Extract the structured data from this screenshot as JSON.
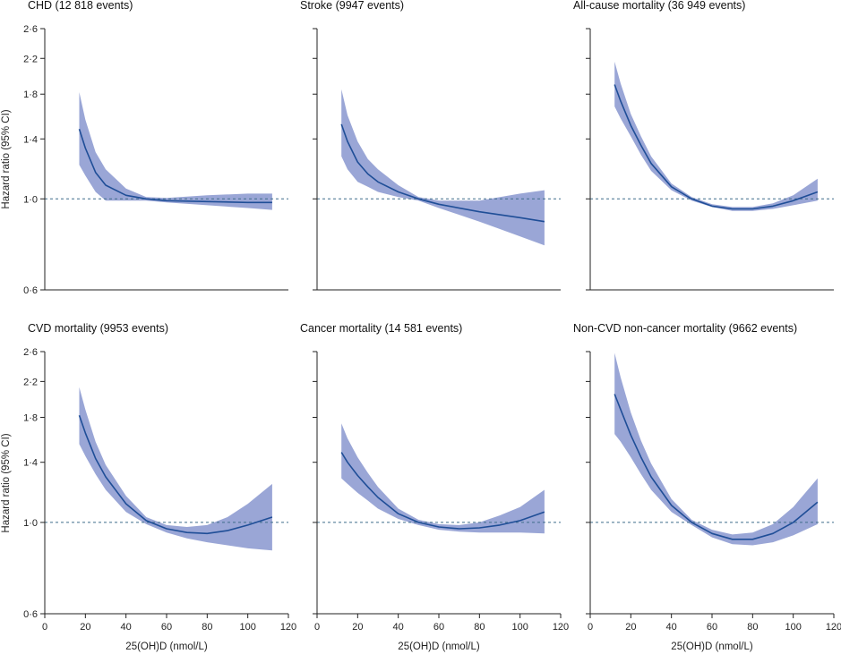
{
  "figure": {
    "y_axis_label": "Hazard ratio (95% CI)",
    "x_axis_label": "25(OH)D (nmol/L)"
  },
  "chart_data": [
    {
      "type": "line",
      "title": "CHD (12 818 events)",
      "ylabel": "Hazard ratio (95% CI)",
      "xlabel": "",
      "xlim": [
        0,
        120
      ],
      "ylim": [
        0.6,
        2.6
      ],
      "y_scale": "log",
      "yticks": [
        "0·6",
        "1·0",
        "1·4",
        "1·8",
        "2·2",
        "2·6"
      ],
      "ytick_values": [
        0.6,
        1.0,
        1.4,
        1.8,
        2.2,
        2.6
      ],
      "xticks": [],
      "reference_line": 1.0,
      "x": [
        17,
        20,
        25,
        30,
        40,
        50,
        60,
        80,
        100,
        112
      ],
      "hr": [
        1.48,
        1.33,
        1.16,
        1.08,
        1.02,
        1.0,
        0.99,
        0.985,
        0.98,
        0.98
      ],
      "ci_low": [
        1.21,
        1.14,
        1.04,
        0.99,
        0.99,
        0.99,
        0.98,
        0.965,
        0.95,
        0.94
      ],
      "ci_high": [
        1.82,
        1.56,
        1.3,
        1.18,
        1.06,
        1.01,
        1.005,
        1.02,
        1.03,
        1.03
      ]
    },
    {
      "type": "line",
      "title": "Stroke (9947 events)",
      "ylabel": "",
      "xlabel": "",
      "xlim": [
        0,
        120
      ],
      "ylim": [
        0.6,
        2.6
      ],
      "y_scale": "log",
      "yticks": [],
      "ytick_values": [
        0.6,
        1.0,
        1.4,
        1.8,
        2.2,
        2.6
      ],
      "xticks": [],
      "reference_line": 1.0,
      "x": [
        12,
        15,
        20,
        25,
        30,
        40,
        50,
        60,
        80,
        100,
        112
      ],
      "hr": [
        1.52,
        1.38,
        1.23,
        1.15,
        1.1,
        1.04,
        1.0,
        0.97,
        0.93,
        0.9,
        0.88
      ],
      "ci_low": [
        1.27,
        1.18,
        1.1,
        1.07,
        1.04,
        1.01,
        0.99,
        0.95,
        0.88,
        0.81,
        0.77
      ],
      "ci_high": [
        1.85,
        1.6,
        1.38,
        1.25,
        1.18,
        1.08,
        1.01,
        0.99,
        0.99,
        1.03,
        1.05
      ]
    },
    {
      "type": "line",
      "title": "All-cause mortality (36 949 events)",
      "ylabel": "",
      "xlabel": "",
      "xlim": [
        0,
        120
      ],
      "ylim": [
        0.6,
        2.6
      ],
      "y_scale": "log",
      "yticks": [],
      "ytick_values": [
        0.6,
        1.0,
        1.4,
        1.8,
        2.2,
        2.6
      ],
      "xticks": [],
      "reference_line": 1.0,
      "x": [
        12,
        15,
        20,
        25,
        30,
        40,
        50,
        60,
        70,
        80,
        90,
        100,
        112
      ],
      "hr": [
        1.9,
        1.73,
        1.51,
        1.35,
        1.22,
        1.07,
        1.0,
        0.96,
        0.945,
        0.945,
        0.96,
        0.99,
        1.04
      ],
      "ci_low": [
        1.68,
        1.57,
        1.42,
        1.28,
        1.17,
        1.05,
        0.99,
        0.955,
        0.935,
        0.935,
        0.945,
        0.965,
        0.99
      ],
      "ci_high": [
        2.16,
        1.91,
        1.61,
        1.42,
        1.27,
        1.09,
        1.01,
        0.97,
        0.955,
        0.955,
        0.975,
        1.02,
        1.12
      ]
    },
    {
      "type": "line",
      "title": "CVD mortality (9953 events)",
      "ylabel": "Hazard ratio (95% CI)",
      "xlabel": "25(OH)D (nmol/L)",
      "xlim": [
        0,
        120
      ],
      "ylim": [
        0.6,
        2.6
      ],
      "y_scale": "log",
      "yticks": [
        "0·6",
        "1·0",
        "1·4",
        "1·8",
        "2·2",
        "2·6"
      ],
      "ytick_values": [
        0.6,
        1.0,
        1.4,
        1.8,
        2.2,
        2.6
      ],
      "xticks": [
        0,
        20,
        40,
        60,
        80,
        100,
        120
      ],
      "reference_line": 1.0,
      "x": [
        17,
        20,
        25,
        30,
        40,
        50,
        60,
        70,
        80,
        90,
        100,
        112
      ],
      "hr": [
        1.82,
        1.65,
        1.43,
        1.29,
        1.11,
        1.01,
        0.965,
        0.945,
        0.94,
        0.955,
        0.985,
        1.03
      ],
      "ci_low": [
        1.55,
        1.45,
        1.31,
        1.2,
        1.06,
        0.99,
        0.945,
        0.915,
        0.895,
        0.88,
        0.865,
        0.855
      ],
      "ci_high": [
        2.13,
        1.88,
        1.57,
        1.38,
        1.16,
        1.03,
        0.985,
        0.975,
        0.985,
        1.03,
        1.11,
        1.24
      ]
    },
    {
      "type": "line",
      "title": "Cancer mortality (14 581 events)",
      "ylabel": "",
      "xlabel": "25(OH)D (nmol/L)",
      "xlim": [
        0,
        120
      ],
      "ylim": [
        0.6,
        2.6
      ],
      "y_scale": "log",
      "yticks": [],
      "ytick_values": [
        0.6,
        1.0,
        1.4,
        1.8,
        2.2,
        2.6
      ],
      "xticks": [
        0,
        20,
        40,
        60,
        80,
        100,
        120
      ],
      "reference_line": 1.0,
      "x": [
        12,
        15,
        20,
        25,
        30,
        40,
        50,
        60,
        70,
        80,
        90,
        100,
        112
      ],
      "hr": [
        1.48,
        1.4,
        1.3,
        1.22,
        1.15,
        1.05,
        1.0,
        0.975,
        0.965,
        0.97,
        0.985,
        1.01,
        1.06
      ],
      "ci_low": [
        1.28,
        1.24,
        1.18,
        1.13,
        1.08,
        1.02,
        0.985,
        0.96,
        0.95,
        0.945,
        0.945,
        0.945,
        0.94
      ],
      "ci_high": [
        1.74,
        1.6,
        1.44,
        1.32,
        1.22,
        1.08,
        1.015,
        0.99,
        0.985,
        1.0,
        1.04,
        1.09,
        1.2
      ]
    },
    {
      "type": "line",
      "title": "Non-CVD non-cancer mortality (9662 events)",
      "ylabel": "",
      "xlabel": "25(OH)D (nmol/L)",
      "xlim": [
        0,
        120
      ],
      "ylim": [
        0.6,
        2.6
      ],
      "y_scale": "log",
      "yticks": [],
      "ytick_values": [
        0.6,
        1.0,
        1.4,
        1.8,
        2.2,
        2.6
      ],
      "xticks": [
        0,
        20,
        40,
        60,
        80,
        100,
        120
      ],
      "reference_line": 1.0,
      "x": [
        12,
        15,
        20,
        25,
        30,
        40,
        50,
        60,
        70,
        80,
        90,
        100,
        112
      ],
      "hr": [
        2.05,
        1.88,
        1.63,
        1.44,
        1.29,
        1.1,
        1.0,
        0.94,
        0.91,
        0.91,
        0.94,
        1.0,
        1.12
      ],
      "ci_low": [
        1.64,
        1.57,
        1.44,
        1.31,
        1.2,
        1.06,
        0.985,
        0.92,
        0.885,
        0.88,
        0.895,
        0.93,
        0.99
      ],
      "ci_high": [
        2.58,
        2.25,
        1.85,
        1.58,
        1.39,
        1.14,
        1.015,
        0.96,
        0.935,
        0.945,
        0.99,
        1.09,
        1.28
      ]
    }
  ],
  "colors": {
    "line": "#1f4e97",
    "band": "#9aa6d6",
    "reference": "#3f6c8a",
    "axis": "#222222"
  }
}
